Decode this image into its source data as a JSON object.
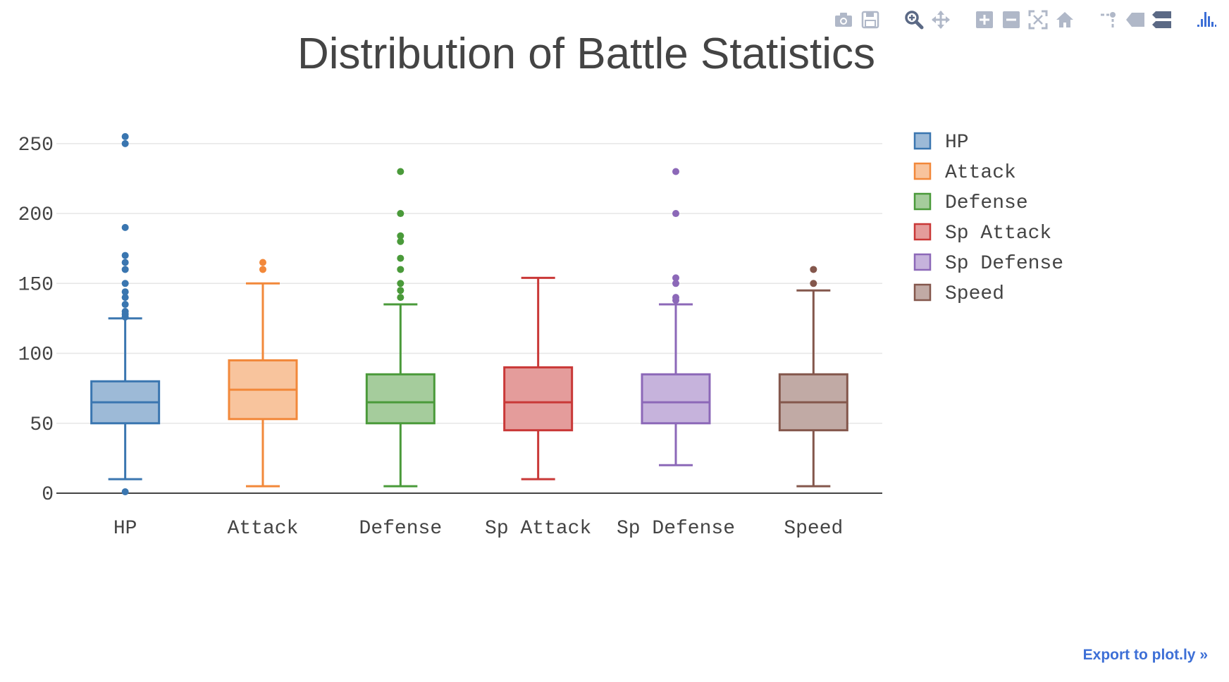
{
  "modebar": {
    "groups": [
      [
        "camera-icon",
        "save-icon"
      ],
      [
        "zoom-icon",
        "pan-icon"
      ],
      [
        "zoom-in-icon",
        "zoom-out-icon",
        "autoscale-icon",
        "home-icon"
      ],
      [
        "spike-lines-icon",
        "hover-closest-icon",
        "hover-compare-icon"
      ],
      [
        "plotly-logo-icon"
      ]
    ],
    "colors": {
      "default": "#b0b8c8",
      "active": "#5b6985",
      "logo": "#3d6fd6"
    }
  },
  "export_link": "Export to plot.ly »",
  "chart_data": {
    "type": "box",
    "title": "Distribution of Battle Statistics",
    "xlabel": "",
    "ylabel": "",
    "ylim": [
      0,
      262
    ],
    "yticks": [
      0,
      50,
      100,
      150,
      200,
      250
    ],
    "ytick_labels": [
      "0",
      "50",
      "100",
      "150",
      "200",
      "250"
    ],
    "grid": true,
    "legend_position": "right",
    "categories": [
      "HP",
      "Attack",
      "Defense",
      "Sp Attack",
      "Sp Defense",
      "Speed"
    ],
    "series": [
      {
        "name": "HP",
        "color": "#3a76b0",
        "fill": "#9dbad7",
        "whisker_low": 10,
        "q1": 50,
        "median": 65,
        "q3": 80,
        "whisker_high": 125,
        "outliers": [
          1,
          126,
          128,
          130,
          135,
          140,
          144,
          150,
          160,
          165,
          170,
          190,
          250,
          255
        ]
      },
      {
        "name": "Attack",
        "color": "#f2883a",
        "fill": "#f8c49d",
        "whisker_low": 5,
        "q1": 53,
        "median": 74,
        "q3": 95,
        "whisker_high": 150,
        "outliers": [
          160,
          165
        ]
      },
      {
        "name": "Defense",
        "color": "#4a9a3a",
        "fill": "#a5cc9c",
        "whisker_low": 5,
        "q1": 50,
        "median": 65,
        "q3": 85,
        "whisker_high": 135,
        "outliers": [
          140,
          145,
          150,
          160,
          168,
          180,
          184,
          200,
          230
        ]
      },
      {
        "name": "Sp Attack",
        "color": "#c93837",
        "fill": "#e49c9b",
        "whisker_low": 10,
        "q1": 45,
        "median": 65,
        "q3": 90,
        "whisker_high": 154,
        "outliers": []
      },
      {
        "name": "Sp Defense",
        "color": "#8c68b8",
        "fill": "#c6b3dc",
        "whisker_low": 20,
        "q1": 50,
        "median": 65,
        "q3": 85,
        "whisker_high": 135,
        "outliers": [
          138,
          140,
          150,
          154,
          200,
          230
        ]
      },
      {
        "name": "Speed",
        "color": "#84574c",
        "fill": "#c1aaa5",
        "whisker_low": 5,
        "q1": 45,
        "median": 65,
        "q3": 85,
        "whisker_high": 145,
        "outliers": [
          150,
          160
        ]
      }
    ]
  }
}
